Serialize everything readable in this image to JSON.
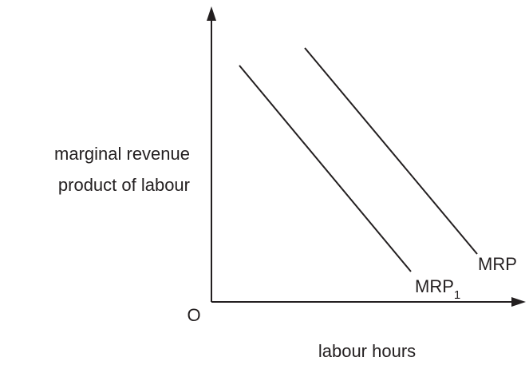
{
  "axes": {
    "y_label": [
      "marginal revenue",
      "product of labour"
    ],
    "x_label": "labour hours",
    "origin": "O"
  },
  "curves": [
    {
      "label": "MRP",
      "subscript": "1"
    },
    {
      "label": "MRP"
    }
  ]
}
